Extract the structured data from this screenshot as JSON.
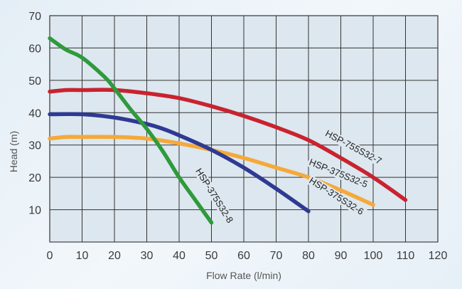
{
  "chart_data": {
    "type": "line",
    "title": "",
    "xlabel": "Flow Rate (l/min)",
    "ylabel": "Head (m)",
    "xlim": [
      0,
      120
    ],
    "ylim": [
      0,
      70
    ],
    "xticks": [
      "0",
      "10",
      "20",
      "30",
      "40",
      "50",
      "60",
      "70",
      "80",
      "90",
      "100",
      "110",
      "120"
    ],
    "yticks": [
      "10",
      "20",
      "30",
      "40",
      "50",
      "60",
      "70"
    ],
    "grid": true,
    "series": [
      {
        "name": "HSP-755S32-7",
        "color": "#c8232f",
        "x": [
          0,
          5,
          10,
          20,
          30,
          40,
          50,
          60,
          70,
          80,
          90,
          100,
          110
        ],
        "y": [
          46.5,
          47,
          47,
          47,
          46,
          44.5,
          42,
          39,
          35.5,
          31.5,
          26,
          20,
          13
        ],
        "label_at": [
          85,
          33
        ],
        "label_angle": 28
      },
      {
        "name": "HSP-375S32-5",
        "color": "#f4a93a",
        "x": [
          0,
          5,
          10,
          20,
          30,
          40,
          50,
          60,
          70,
          80,
          90,
          100
        ],
        "y": [
          32,
          32.5,
          32.5,
          32.5,
          32,
          30.5,
          28.5,
          26,
          23,
          20,
          16,
          11.5
        ],
        "label_at": [
          80,
          24
        ],
        "label_angle": 22
      },
      {
        "name": "HSP-375S32-6",
        "color": "#2e3a92",
        "x": [
          0,
          10,
          20,
          30,
          35,
          40,
          50,
          60,
          70,
          80
        ],
        "y": [
          39.5,
          39.5,
          38.5,
          36.5,
          35,
          33,
          28.5,
          23,
          16.5,
          9.5
        ],
        "label_at": [
          80,
          18.5
        ],
        "label_angle": 32
      },
      {
        "name": "HSP-375S32-8",
        "color": "#2f9a3c",
        "x": [
          0,
          5,
          10,
          17,
          20,
          25,
          30,
          35,
          40,
          45,
          50
        ],
        "y": [
          63,
          59.5,
          57,
          51,
          47.5,
          41,
          35,
          28,
          20,
          13,
          6
        ],
        "label_at": [
          45,
          22
        ],
        "label_angle": 58
      }
    ]
  }
}
